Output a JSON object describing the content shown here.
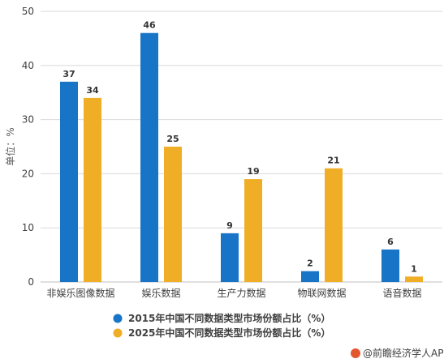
{
  "chart_data": {
    "type": "bar",
    "categories": [
      "非娱乐图像数据",
      "娱乐数据",
      "生产力数据",
      "物联网数据",
      "语音数据"
    ],
    "series": [
      {
        "name": "2015年中国不同数据类型市场份额占比（%）",
        "values": [
          37,
          46,
          9,
          2,
          6
        ],
        "color": "#1874c6"
      },
      {
        "name": "2025年中国不同数据类型市场份额占比（%）",
        "values": [
          34,
          25,
          19,
          21,
          1
        ],
        "color": "#f0ae27"
      }
    ],
    "ylabel": "单位：%",
    "ylim": [
      0,
      50
    ],
    "yticks": [
      0,
      10,
      20,
      30,
      40,
      50
    ],
    "grid": true,
    "legend_position": "bottom"
  },
  "credit": {
    "text": "@前瞻经济学人APP",
    "logo_color": "#e4572e"
  }
}
